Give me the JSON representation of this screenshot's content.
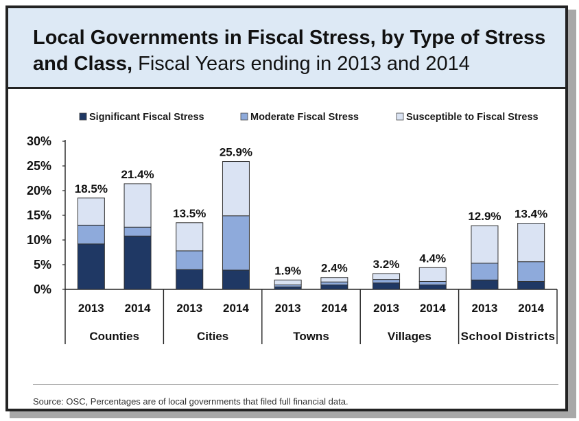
{
  "title": {
    "bold": "Local Governments in Fiscal Stress, by Type of Stress and Class,",
    "rest": " Fiscal Years ending in 2013 and 2014"
  },
  "source": "Source: OSC, Percentages are of local governments that filed full financial data.",
  "chart_data": {
    "type": "bar",
    "stacked": true,
    "ylim": [
      0,
      30
    ],
    "yticks": [
      "0%",
      "5%",
      "10%",
      "15%",
      "20%",
      "25%",
      "30%"
    ],
    "legend_position": "top",
    "groups": [
      {
        "name": "Counties",
        "categories": [
          "2013",
          "2014"
        ]
      },
      {
        "name": "Cities",
        "categories": [
          "2013",
          "2014"
        ]
      },
      {
        "name": "Towns",
        "categories": [
          "2013",
          "2014"
        ]
      },
      {
        "name": "Villages",
        "categories": [
          "2013",
          "2014"
        ]
      },
      {
        "name": "School Districts",
        "categories": [
          "2013",
          "2014"
        ]
      }
    ],
    "series": [
      {
        "name": "Significant Fiscal Stress",
        "color": "#1f3864",
        "values": [
          9.2,
          10.8,
          4.0,
          3.9,
          0.5,
          0.9,
          1.3,
          0.9,
          1.9,
          1.6
        ]
      },
      {
        "name": "Moderate Fiscal Stress",
        "color": "#8eaadb",
        "values": [
          3.8,
          1.8,
          3.8,
          11.0,
          0.4,
          0.6,
          0.7,
          0.7,
          3.4,
          4.0
        ]
      },
      {
        "name": "Susceptible to Fiscal Stress",
        "color": "#dae3f3",
        "values": [
          5.5,
          8.8,
          5.7,
          11.0,
          1.0,
          0.9,
          1.2,
          2.8,
          7.6,
          7.8
        ]
      }
    ],
    "totals": [
      "18.5%",
      "21.4%",
      "13.5%",
      "25.9%",
      "1.9%",
      "2.4%",
      "3.2%",
      "4.4%",
      "12.9%",
      "13.4%"
    ]
  }
}
